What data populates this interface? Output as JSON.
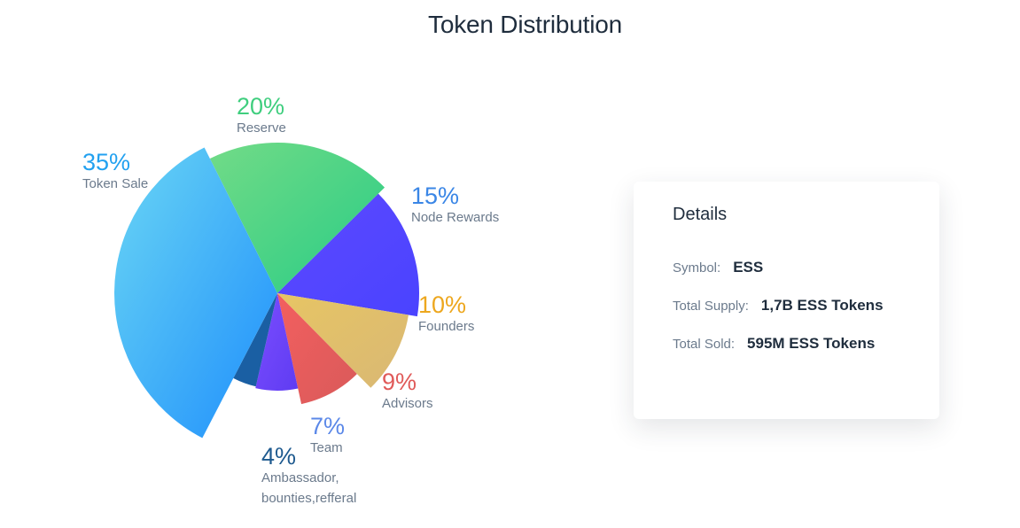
{
  "title": "Token Distribution",
  "chart_data": {
    "type": "pie",
    "slices": [
      {
        "label": "Reserve",
        "percent_label": "20%",
        "value": 20,
        "colors": [
          "#72db87",
          "#28cc85"
        ],
        "label_color": "#3fce7e"
      },
      {
        "label": "Node Rewards",
        "percent_label": "15%",
        "value": 15,
        "colors": [
          "#5d49ff",
          "#4a43ff"
        ],
        "label_color": "#3a86e6"
      },
      {
        "label": "Founders",
        "percent_label": "10%",
        "value": 10,
        "colors": [
          "#e7c564",
          "#d9b874"
        ],
        "label_color": "#eda71e"
      },
      {
        "label": "Advisors",
        "percent_label": "9%",
        "value": 9,
        "colors": [
          "#f35f5f",
          "#d95a5a"
        ],
        "label_color": "#e05a59"
      },
      {
        "label": "Team",
        "percent_label": "7%",
        "value": 7,
        "colors": [
          "#7b4dff",
          "#5f3cf2"
        ],
        "label_color": "#5b88e8"
      },
      {
        "label": "Ambassador, bounties,refferal",
        "label_lines": [
          "Ambassador,",
          "bounties,refferal"
        ],
        "percent_label": "4%",
        "value": 4,
        "colors": [
          "#1a5fa3",
          "#1a5fa3"
        ],
        "label_color": "#1e5a8f"
      },
      {
        "label": "Token Sale",
        "percent_label": "35%",
        "value": 35,
        "colors": [
          "#6ad6f4",
          "#1e8efc"
        ],
        "label_color": "#22a1f0"
      }
    ]
  },
  "details": {
    "title": "Details",
    "rows": [
      {
        "key": "Symbol:",
        "value": "ESS"
      },
      {
        "key": "Total Supply:",
        "value": "1,7B ESS Tokens"
      },
      {
        "key": "Total Sold:",
        "value": "595M ESS Tokens"
      }
    ]
  }
}
